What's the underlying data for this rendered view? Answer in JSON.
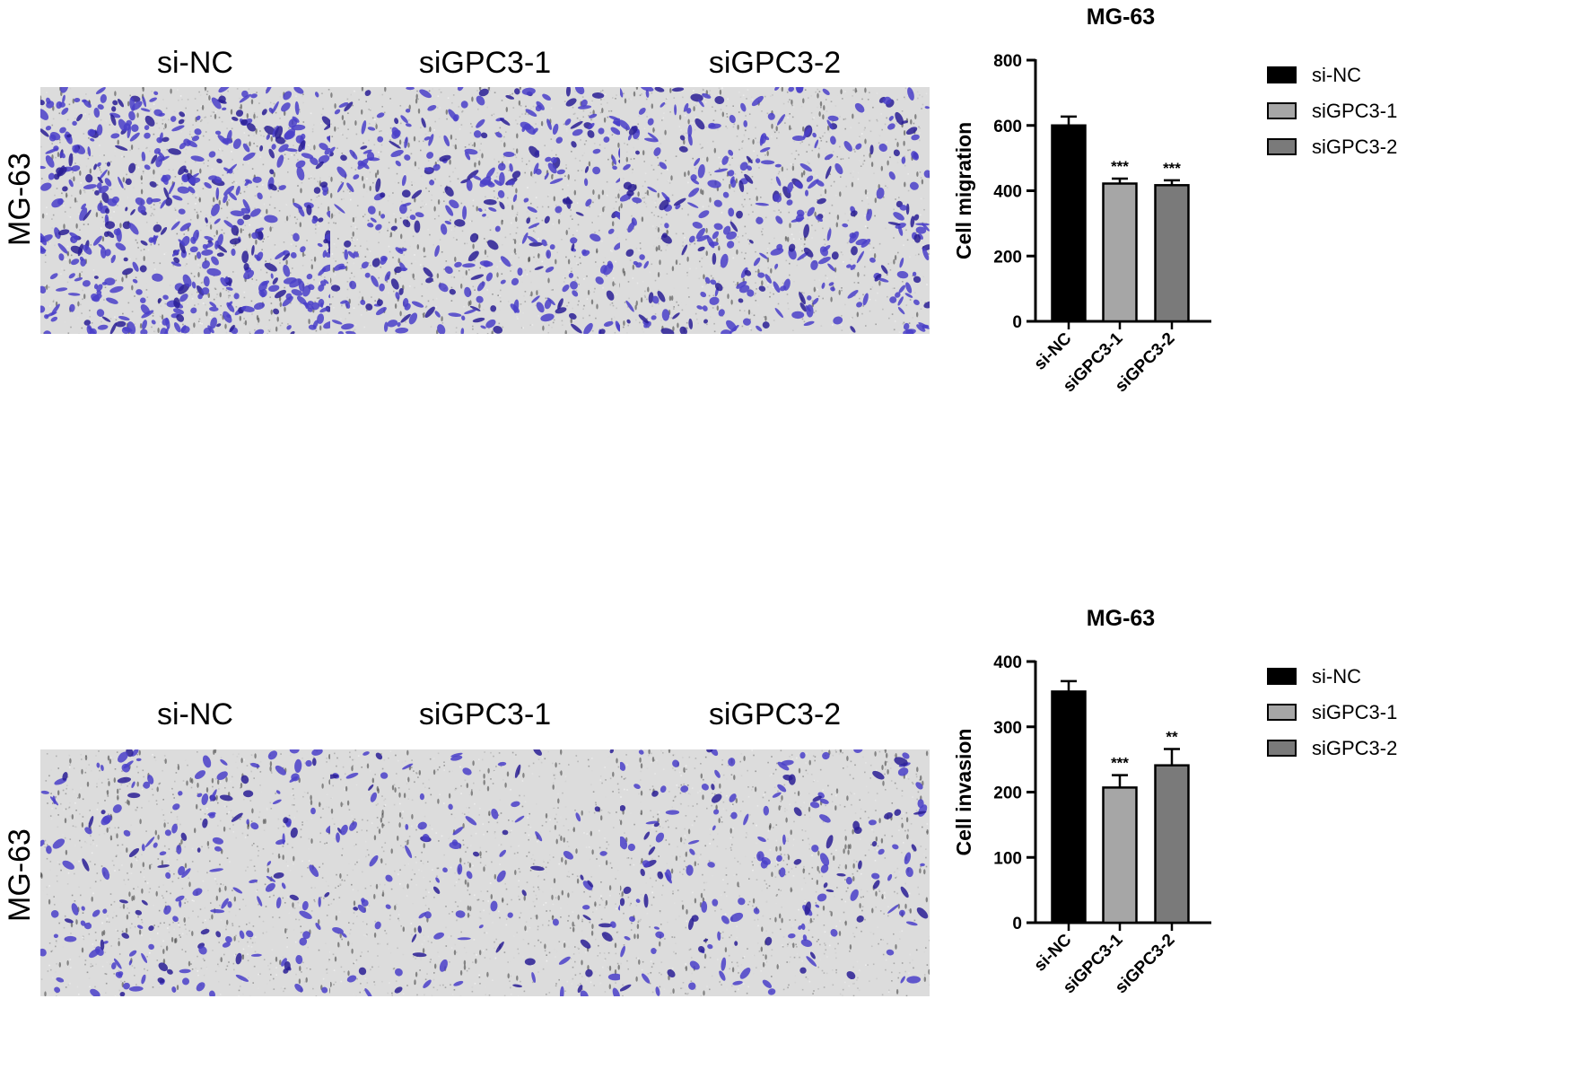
{
  "colors": {
    "si_nc": "#000000",
    "sigpc3_1": "#a6a6a6",
    "sigpc3_2": "#7a7a7a",
    "stain": "#4a3fc9",
    "stain_dark": "#2a1f95",
    "membrane": "#dcdcdc"
  },
  "panels": [
    {
      "row_label": "MG-63",
      "columns": [
        "si-NC",
        "siGPC3-1",
        "siGPC3-2"
      ],
      "images": [
        {
          "depicts": "si-NC",
          "icon": "micrograph-image"
        },
        {
          "depicts": "siGPC3-1",
          "icon": "micrograph-image"
        },
        {
          "depicts": "siGPC3-2",
          "icon": "micrograph-image"
        }
      ]
    },
    {
      "row_label": "MG-63",
      "columns": [
        "si-NC",
        "siGPC3-1",
        "siGPC3-2"
      ],
      "images": [
        {
          "depicts": "si-NC",
          "icon": "micrograph-image"
        },
        {
          "depicts": "siGPC3-1",
          "icon": "micrograph-image"
        },
        {
          "depicts": "siGPC3-2",
          "icon": "micrograph-image"
        }
      ]
    }
  ],
  "chart_data": [
    {
      "type": "bar",
      "title": "MG-63",
      "ylabel": "Cell migration",
      "xlabel": "",
      "ylim": [
        0,
        800
      ],
      "yticks": [
        0,
        200,
        400,
        600,
        800
      ],
      "categories": [
        "si-NC",
        "siGPC3-1",
        "siGPC3-2"
      ],
      "values": [
        600,
        422,
        417
      ],
      "errors": [
        27,
        15,
        15
      ],
      "significance": [
        "",
        "***",
        "***"
      ],
      "legend": [
        "si-NC",
        "siGPC3-1",
        "siGPC3-2"
      ],
      "legend_position": "right",
      "grid": false
    },
    {
      "type": "bar",
      "title": "MG-63",
      "ylabel": "Cell invasion",
      "xlabel": "",
      "ylim": [
        0,
        400
      ],
      "yticks": [
        0,
        100,
        200,
        300,
        400
      ],
      "categories": [
        "si-NC",
        "siGPC3-1",
        "siGPC3-2"
      ],
      "values": [
        354,
        207,
        241
      ],
      "errors": [
        16,
        19,
        25
      ],
      "significance": [
        "",
        "***",
        "**"
      ],
      "legend": [
        "si-NC",
        "siGPC3-1",
        "siGPC3-2"
      ],
      "legend_position": "right",
      "grid": false
    }
  ]
}
